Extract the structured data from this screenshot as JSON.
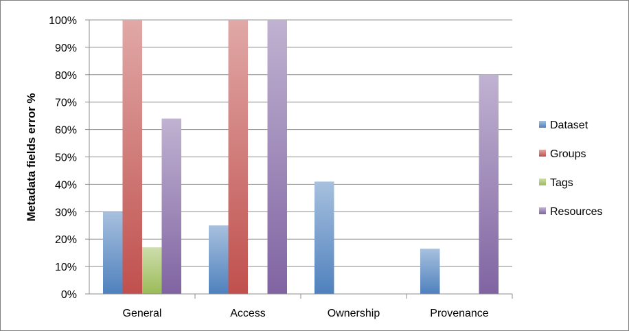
{
  "chart_data": {
    "type": "bar",
    "title": "",
    "xlabel": "",
    "ylabel": "Metadata fields error %",
    "ylim": [
      0,
      100
    ],
    "yticks": [
      "0%",
      "10%",
      "20%",
      "30%",
      "40%",
      "50%",
      "60%",
      "70%",
      "80%",
      "90%",
      "100%"
    ],
    "grid": true,
    "legend_position": "right",
    "categories": [
      "General",
      "Access",
      "Ownership",
      "Provenance"
    ],
    "series": [
      {
        "name": "Dataset",
        "color": "#4f81bd",
        "values": [
          30,
          25,
          41,
          16.5
        ]
      },
      {
        "name": "Groups",
        "color": "#c0504d",
        "values": [
          100,
          100,
          0,
          0
        ]
      },
      {
        "name": "Tags",
        "color": "#9bbb59",
        "values": [
          17,
          0,
          0,
          0
        ]
      },
      {
        "name": "Resources",
        "color": "#8064a2",
        "values": [
          64,
          100,
          0,
          80
        ]
      }
    ]
  }
}
